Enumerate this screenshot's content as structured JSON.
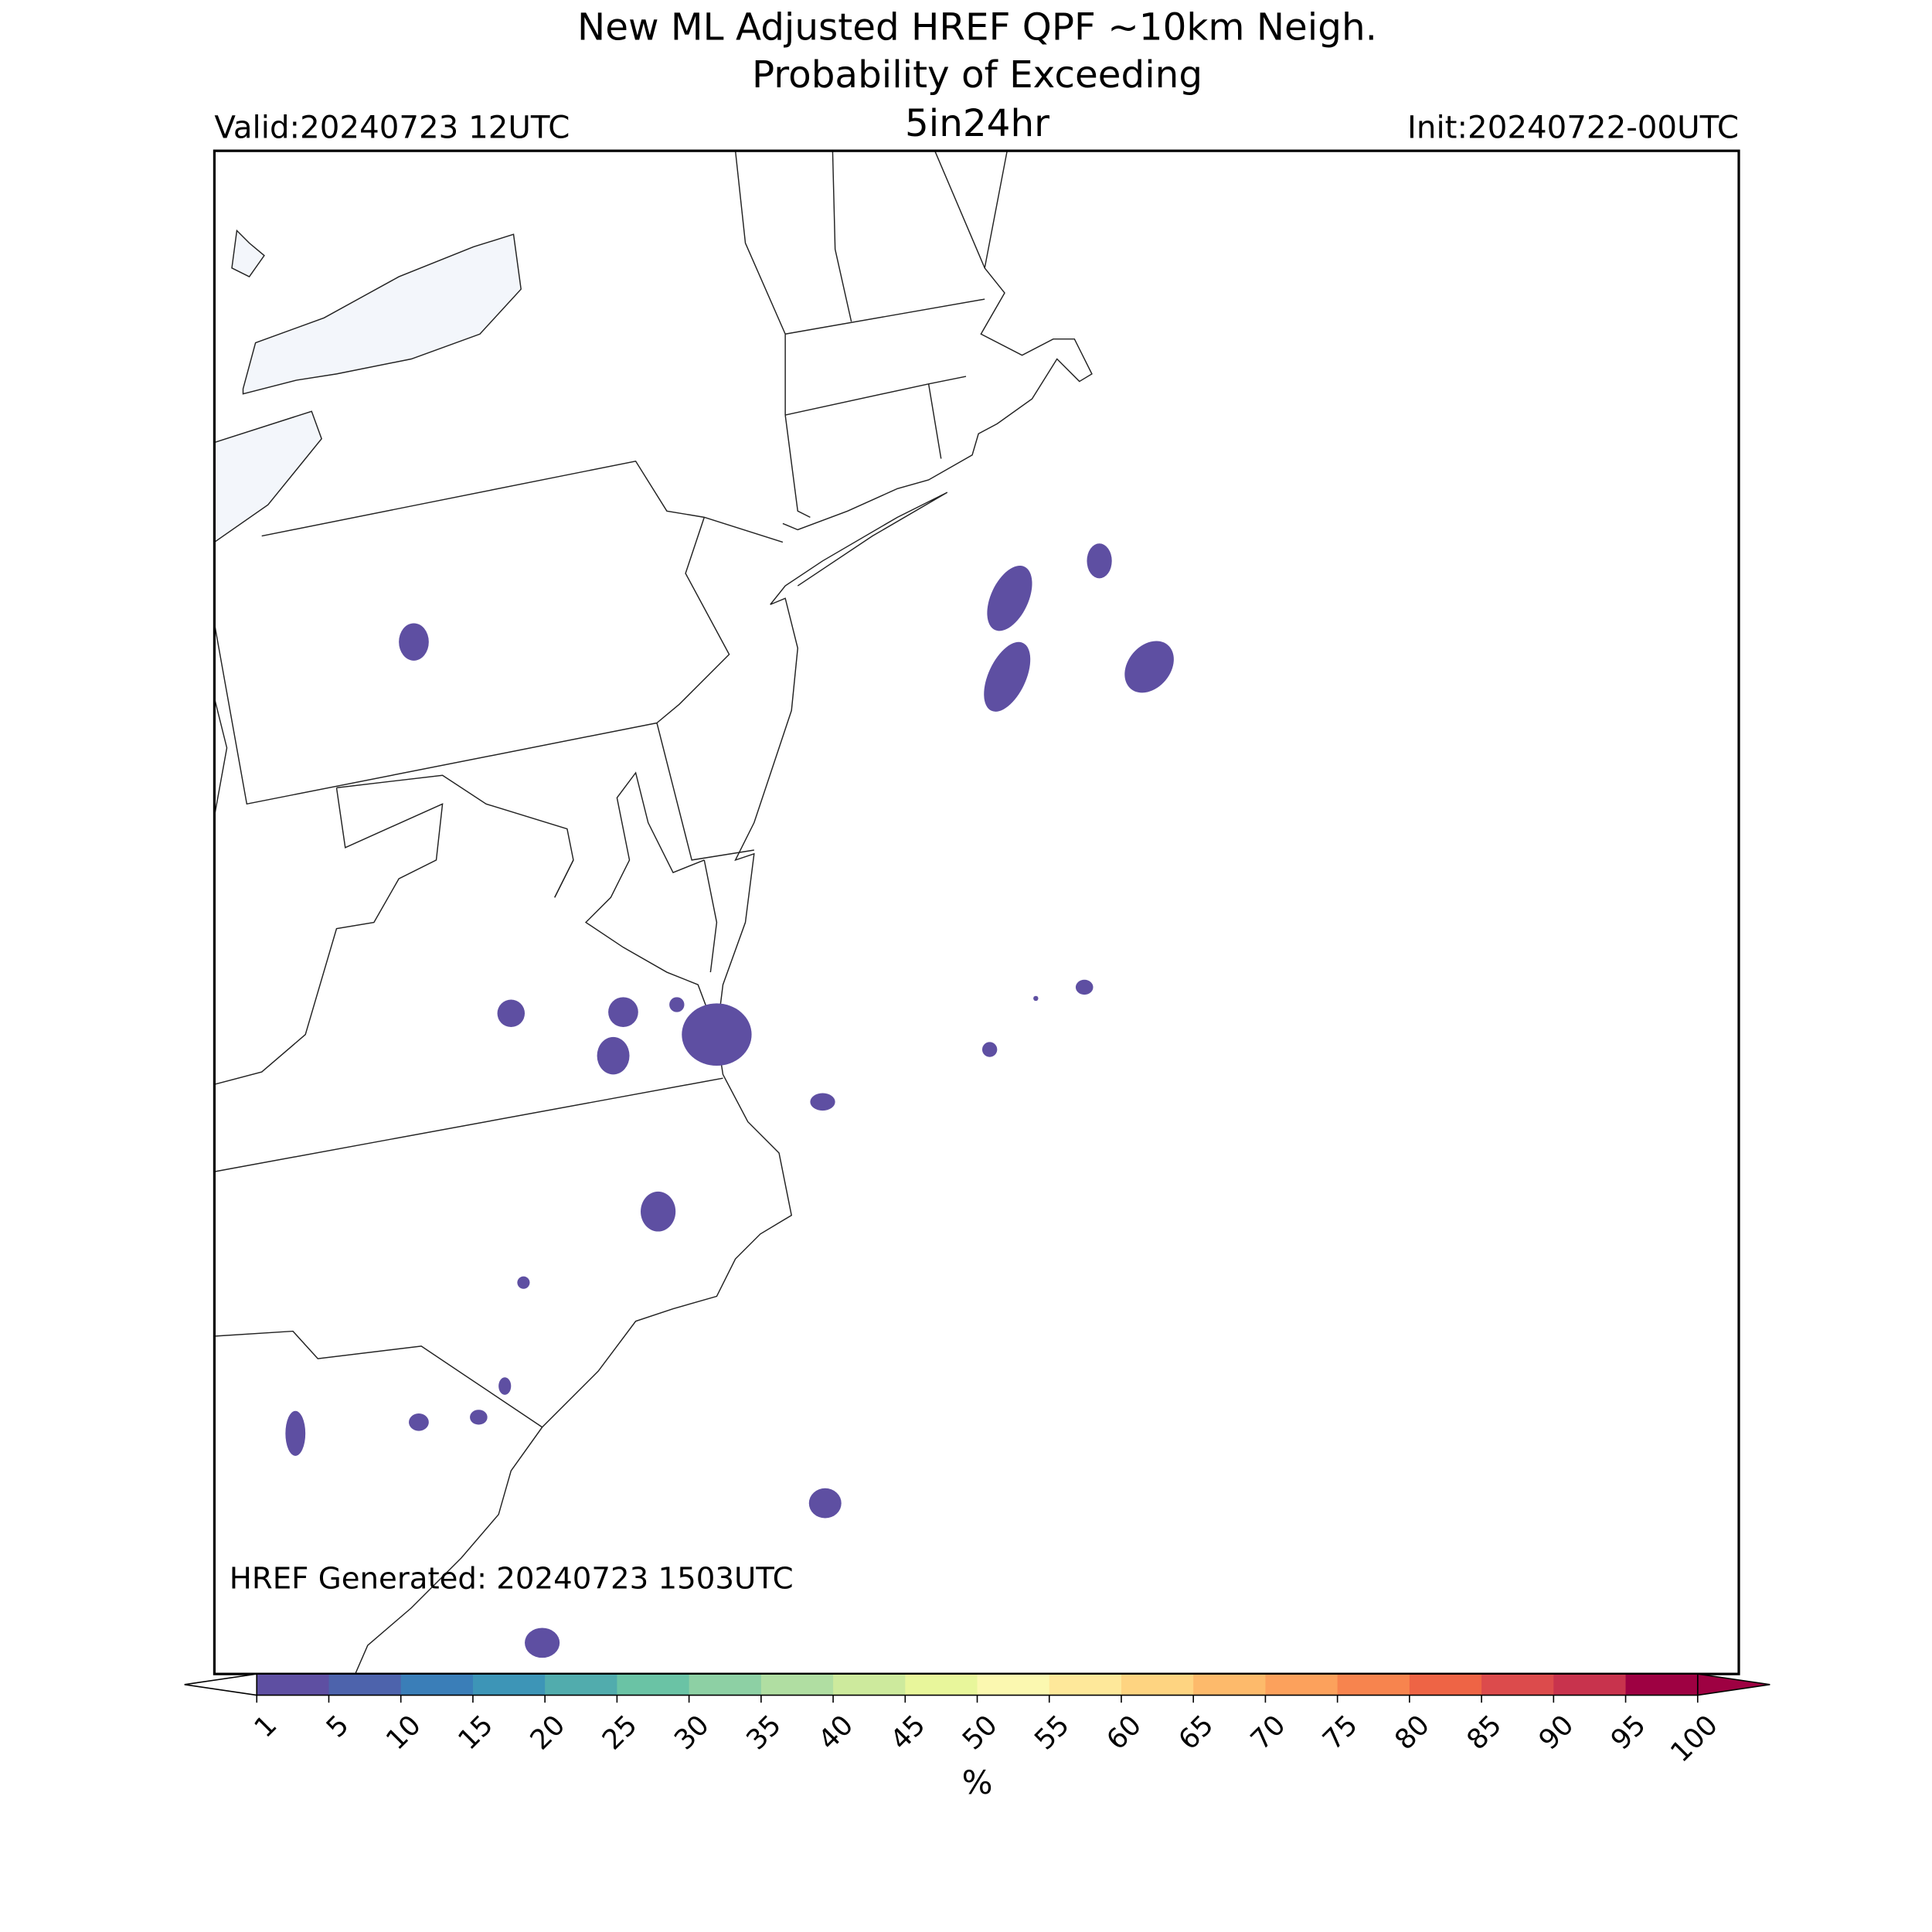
{
  "header": {
    "title": [
      "New ML Adjusted HREF QPF ~10km Neigh.",
      "Probability of Exceeding"
    ],
    "valid": "Valid:20240723 12UTC",
    "threshold": "5in24hr",
    "init": "Init:20240722-00UTC"
  },
  "generated": "HREF Generated: 20240723 1503UTC",
  "colorbar": {
    "ticks": [
      1,
      5,
      10,
      15,
      20,
      25,
      30,
      35,
      40,
      45,
      50,
      55,
      60,
      65,
      70,
      75,
      80,
      85,
      90,
      95,
      100
    ],
    "colors": [
      "#5e4fa2",
      "#4d63ac",
      "#3a7eb8",
      "#3d95b7",
      "#51acad",
      "#6ac3a5",
      "#8dd0a4",
      "#b0dea2",
      "#cdea9d",
      "#e8f69b",
      "#fbf8b0",
      "#fee89a",
      "#fed481",
      "#fdba6b",
      "#fca15c",
      "#f7844e",
      "#ee6445",
      "#dc4b4c",
      "#c8334d",
      "#9e0142"
    ],
    "under_color": "#ffffff",
    "over_color": "#9e0142",
    "label": "%"
  }
}
